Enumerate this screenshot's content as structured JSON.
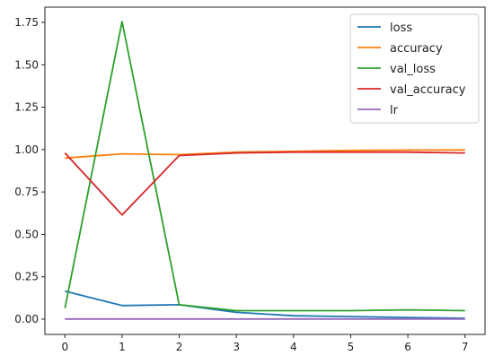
{
  "chart_data": {
    "type": "line",
    "x": [
      0,
      1,
      2,
      3,
      4,
      5,
      6,
      7
    ],
    "xlim": [
      -0.35,
      7.35
    ],
    "ylim": [
      -0.09,
      1.84
    ],
    "xticks": [
      "0",
      "1",
      "2",
      "3",
      "4",
      "5",
      "6",
      "7"
    ],
    "yticks": [
      "0.00",
      "0.25",
      "0.50",
      "0.75",
      "1.00",
      "1.25",
      "1.50",
      "1.75"
    ],
    "grid": false,
    "legend_position": "top-right",
    "series": [
      {
        "name": "loss",
        "color": "#1f77b4",
        "values": [
          0.165,
          0.08,
          0.085,
          0.04,
          0.02,
          0.015,
          0.01,
          0.005
        ]
      },
      {
        "name": "accuracy",
        "color": "#ff7f0e",
        "values": [
          0.95,
          0.975,
          0.97,
          0.985,
          0.99,
          0.995,
          0.997,
          0.998
        ]
      },
      {
        "name": "val_loss",
        "color": "#2ca02c",
        "values": [
          0.065,
          1.755,
          0.085,
          0.05,
          0.05,
          0.05,
          0.055,
          0.05
        ]
      },
      {
        "name": "val_accuracy",
        "color": "#d62728",
        "values": [
          0.98,
          0.615,
          0.965,
          0.98,
          0.985,
          0.985,
          0.985,
          0.98
        ]
      },
      {
        "name": "lr",
        "color": "#9467bd",
        "values": [
          0.001,
          0.001,
          0.001,
          0.001,
          0.001,
          0.001,
          0.001,
          0.001
        ]
      }
    ]
  }
}
